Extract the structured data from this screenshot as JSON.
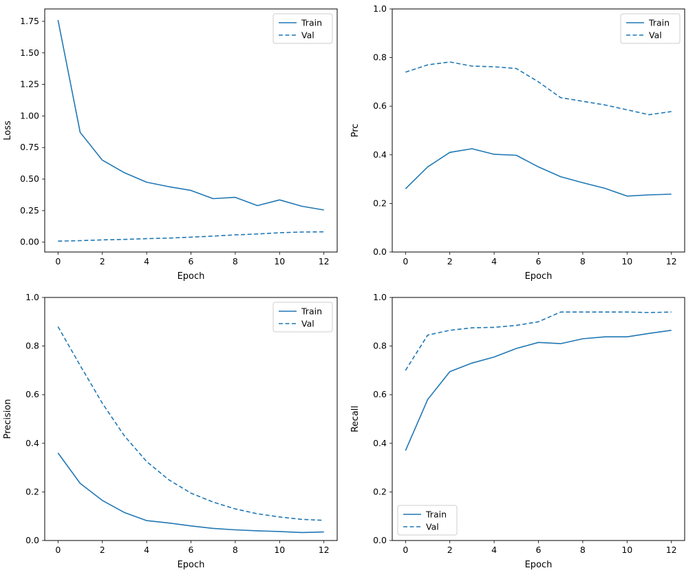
{
  "figure": {
    "background": "#ffffff"
  },
  "colors": {
    "line": "#1f77b4",
    "axis": "#000000",
    "legend_border": "#cccccc",
    "legend_fill": "#ffffff"
  },
  "legend": {
    "train_label": "Train",
    "val_label": "Val"
  },
  "chart_data": [
    {
      "type": "line",
      "title": "",
      "xlabel": "Epoch",
      "ylabel": "Loss",
      "x": [
        0,
        1,
        2,
        3,
        4,
        5,
        6,
        7,
        8,
        9,
        10,
        11,
        12
      ],
      "xlim": [
        -0.6,
        12.6
      ],
      "ylim": [
        -0.078,
        1.848
      ],
      "xticks": [
        0,
        2,
        4,
        6,
        8,
        10,
        12
      ],
      "xtick_labels": [
        "0",
        "2",
        "4",
        "6",
        "8",
        "10",
        "12"
      ],
      "yticks": [
        0,
        0.25,
        0.5,
        0.75,
        1.0,
        1.25,
        1.5,
        1.75
      ],
      "ytick_labels": [
        "0.00",
        "0.25",
        "0.50",
        "0.75",
        "1.00",
        "1.25",
        "1.50",
        "1.75"
      ],
      "grid": false,
      "legend_position": "upper-right",
      "series": [
        {
          "name": "Train",
          "style": "solid",
          "values": [
            1.76,
            0.87,
            0.65,
            0.55,
            0.475,
            0.44,
            0.41,
            0.345,
            0.355,
            0.29,
            0.335,
            0.285,
            0.255
          ]
        },
        {
          "name": "Val",
          "style": "dashed",
          "values": [
            0.008,
            0.012,
            0.018,
            0.022,
            0.028,
            0.032,
            0.04,
            0.048,
            0.058,
            0.065,
            0.075,
            0.08,
            0.082
          ]
        }
      ]
    },
    {
      "type": "line",
      "title": "",
      "xlabel": "Epoch",
      "ylabel": "Prc",
      "x": [
        0,
        1,
        2,
        3,
        4,
        5,
        6,
        7,
        8,
        9,
        10,
        11,
        12
      ],
      "xlim": [
        -0.6,
        12.6
      ],
      "ylim": [
        0,
        1.0
      ],
      "xticks": [
        0,
        2,
        4,
        6,
        8,
        10,
        12
      ],
      "xtick_labels": [
        "0",
        "2",
        "4",
        "6",
        "8",
        "10",
        "12"
      ],
      "yticks": [
        0,
        0.2,
        0.4,
        0.6,
        0.8,
        1.0
      ],
      "ytick_labels": [
        "0.0",
        "0.2",
        "0.4",
        "0.6",
        "0.8",
        "1.0"
      ],
      "grid": false,
      "legend_position": "upper-right",
      "series": [
        {
          "name": "Train",
          "style": "solid",
          "values": [
            0.26,
            0.35,
            0.41,
            0.425,
            0.402,
            0.398,
            0.35,
            0.31,
            0.285,
            0.262,
            0.23,
            0.235,
            0.238
          ]
        },
        {
          "name": "Val",
          "style": "dashed",
          "values": [
            0.74,
            0.77,
            0.782,
            0.765,
            0.762,
            0.755,
            0.7,
            0.635,
            0.62,
            0.605,
            0.585,
            0.565,
            0.578
          ]
        }
      ]
    },
    {
      "type": "line",
      "title": "",
      "xlabel": "Epoch",
      "ylabel": "Precision",
      "x": [
        0,
        1,
        2,
        3,
        4,
        5,
        6,
        7,
        8,
        9,
        10,
        11,
        12
      ],
      "xlim": [
        -0.6,
        12.6
      ],
      "ylim": [
        0,
        1.0
      ],
      "xticks": [
        0,
        2,
        4,
        6,
        8,
        10,
        12
      ],
      "xtick_labels": [
        "0",
        "2",
        "4",
        "6",
        "8",
        "10",
        "12"
      ],
      "yticks": [
        0,
        0.2,
        0.4,
        0.6,
        0.8,
        1.0
      ],
      "ytick_labels": [
        "0.0",
        "0.2",
        "0.4",
        "0.6",
        "0.8",
        "1.0"
      ],
      "grid": false,
      "legend_position": "upper-right",
      "series": [
        {
          "name": "Train",
          "style": "solid",
          "values": [
            0.36,
            0.235,
            0.165,
            0.115,
            0.082,
            0.072,
            0.06,
            0.05,
            0.044,
            0.04,
            0.037,
            0.033,
            0.035
          ]
        },
        {
          "name": "Val",
          "style": "dashed",
          "values": [
            0.88,
            0.72,
            0.565,
            0.43,
            0.325,
            0.25,
            0.195,
            0.158,
            0.13,
            0.11,
            0.097,
            0.087,
            0.083
          ]
        }
      ]
    },
    {
      "type": "line",
      "title": "",
      "xlabel": "Epoch",
      "ylabel": "Recall",
      "x": [
        0,
        1,
        2,
        3,
        4,
        5,
        6,
        7,
        8,
        9,
        10,
        11,
        12
      ],
      "xlim": [
        -0.6,
        12.6
      ],
      "ylim": [
        0,
        1.0
      ],
      "xticks": [
        0,
        2,
        4,
        6,
        8,
        10,
        12
      ],
      "xtick_labels": [
        "0",
        "2",
        "4",
        "6",
        "8",
        "10",
        "12"
      ],
      "yticks": [
        0,
        0.2,
        0.4,
        0.6,
        0.8,
        1.0
      ],
      "ytick_labels": [
        "0.0",
        "0.2",
        "0.4",
        "0.6",
        "0.8",
        "1.0"
      ],
      "grid": false,
      "legend_position": "lower-left",
      "series": [
        {
          "name": "Train",
          "style": "solid",
          "values": [
            0.37,
            0.58,
            0.695,
            0.73,
            0.755,
            0.79,
            0.815,
            0.81,
            0.83,
            0.838,
            0.838,
            0.852,
            0.865
          ]
        },
        {
          "name": "Val",
          "style": "dashed",
          "values": [
            0.7,
            0.845,
            0.865,
            0.875,
            0.877,
            0.885,
            0.9,
            0.94,
            0.94,
            0.94,
            0.94,
            0.938,
            0.94
          ]
        }
      ]
    }
  ]
}
